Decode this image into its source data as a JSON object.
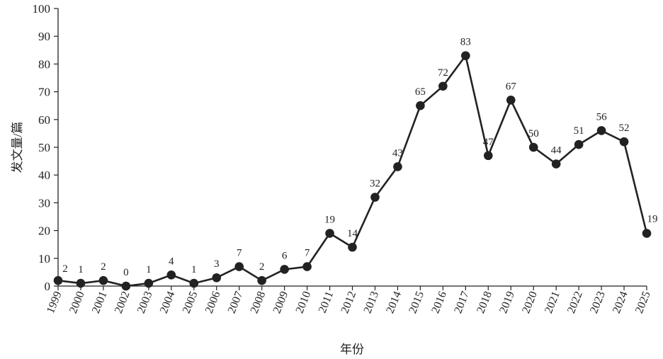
{
  "chart_data": {
    "type": "line",
    "x": [
      "1999",
      "2000",
      "2001",
      "2002",
      "2003",
      "2004",
      "2005",
      "2006",
      "2007",
      "2008",
      "2009",
      "2010",
      "2011",
      "2012",
      "2013",
      "2014",
      "2015",
      "2016",
      "2017",
      "2018",
      "2019",
      "2020",
      "2021",
      "2022",
      "2023",
      "2024",
      "2025"
    ],
    "values": [
      2,
      1,
      2,
      0,
      1,
      4,
      1,
      3,
      7,
      2,
      6,
      7,
      19,
      14,
      32,
      43,
      65,
      72,
      83,
      47,
      67,
      50,
      44,
      51,
      56,
      52,
      19
    ],
    "xlabel": "年份",
    "ylabel": "发文量/篇",
    "ylim": [
      0,
      100
    ],
    "yticks": [
      0,
      10,
      20,
      30,
      40,
      50,
      60,
      70,
      80,
      90,
      100
    ],
    "grid": false,
    "line_color": "#222222",
    "marker_color": "#222222"
  }
}
